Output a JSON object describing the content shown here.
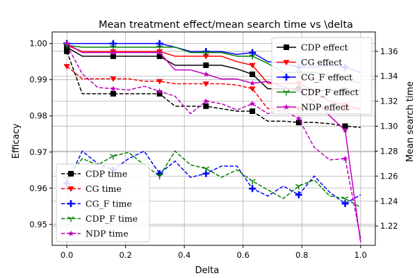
{
  "chart_data": {
    "type": "line",
    "title": "Mean treatment effect/mean search time vs \\delta",
    "xlabel": "Delta",
    "ylabel": "Efficacy",
    "y2label": "Mean search time",
    "xlim": [
      -0.05,
      1.05
    ],
    "ylim": [
      0.9442,
      1.0032
    ],
    "y2lim": [
      1.2045,
      1.3755
    ],
    "x_ticks": [
      0.0,
      0.2,
      0.4,
      0.6,
      0.8,
      1.0
    ],
    "x_tick_labels": [
      "0.0",
      "0.2",
      "0.4",
      "0.6",
      "0.8",
      "1.0"
    ],
    "y_ticks": [
      0.95,
      0.96,
      0.97,
      0.98,
      0.99,
      1.0
    ],
    "y_tick_labels": [
      "0.95",
      "0.96",
      "0.97",
      "0.98",
      "0.99",
      "1.00"
    ],
    "y2_ticks": [
      1.22,
      1.24,
      1.26,
      1.28,
      1.3,
      1.32,
      1.34,
      1.36
    ],
    "y2_tick_labels": [
      "1.22",
      "1.24",
      "1.26",
      "1.28",
      "1.30",
      "1.32",
      "1.34",
      "1.36"
    ],
    "grid": true,
    "x": [
      0.0,
      0.0526,
      0.1053,
      0.1579,
      0.2105,
      0.2632,
      0.3158,
      0.3684,
      0.4211,
      0.4737,
      0.5263,
      0.5789,
      0.6316,
      0.6842,
      0.7368,
      0.7895,
      0.8421,
      0.8947,
      0.9474,
      1.0
    ],
    "series": [
      {
        "name": "CDP effect",
        "axis": "left",
        "style": "solid",
        "color": "#000000",
        "marker": "square",
        "values": [
          0.999,
          0.9965,
          0.9965,
          0.9965,
          0.9965,
          0.9965,
          0.9965,
          0.994,
          0.994,
          0.994,
          0.994,
          0.993,
          0.9915,
          0.9875,
          0.9875,
          0.9875,
          0.987,
          0.987,
          0.987,
          0.987
        ]
      },
      {
        "name": "CG effect",
        "axis": "left",
        "style": "solid",
        "color": "#ff0000",
        "marker": "triangle-down",
        "values": [
          0.9995,
          0.9978,
          0.9978,
          0.9978,
          0.9978,
          0.9978,
          0.9978,
          0.9965,
          0.9965,
          0.9965,
          0.9965,
          0.995,
          0.994,
          0.989,
          0.989,
          0.989,
          0.987,
          0.984,
          0.983,
          0.9818
        ]
      },
      {
        "name": "CG_F effect",
        "axis": "left",
        "style": "solid",
        "color": "#0000ff",
        "marker": "plus",
        "values": [
          1.0,
          1.0,
          1.0,
          1.0,
          1.0,
          1.0,
          1.0,
          0.999,
          0.9978,
          0.9978,
          0.9978,
          0.997,
          0.9975,
          0.995,
          0.9945,
          0.9935,
          0.9935,
          0.994,
          0.9935,
          0.992
        ]
      },
      {
        "name": "CDP_F effect",
        "axis": "left",
        "style": "solid",
        "color": "#008000",
        "marker": "tri-down",
        "values": [
          0.9995,
          0.999,
          0.999,
          0.999,
          0.999,
          0.999,
          0.999,
          0.999,
          0.9975,
          0.9975,
          0.9975,
          0.9965,
          0.9965,
          0.9945,
          0.992,
          0.992,
          0.992,
          0.991,
          0.99,
          0.989
        ]
      },
      {
        "name": "NDP effect",
        "axis": "left",
        "style": "solid",
        "color": "#bf00bf",
        "marker": "star",
        "values": [
          1.0,
          0.9975,
          0.9975,
          0.9975,
          0.9975,
          0.9975,
          0.9975,
          0.9927,
          0.9927,
          0.9915,
          0.9902,
          0.9902,
          0.989,
          0.9895,
          0.988,
          0.987,
          0.984,
          0.98,
          0.976,
          0.945
        ]
      },
      {
        "name": "CDP time",
        "axis": "right",
        "style": "dashed",
        "color": "#000000",
        "marker": "square",
        "values": [
          1.36,
          1.326,
          1.326,
          1.326,
          1.326,
          1.326,
          1.326,
          1.316,
          1.316,
          1.316,
          1.314,
          1.312,
          1.312,
          1.304,
          1.304,
          1.303,
          1.303,
          1.302,
          1.3,
          1.299
        ]
      },
      {
        "name": "CG time",
        "axis": "right",
        "style": "dashed",
        "color": "#ff0000",
        "marker": "triangle-down",
        "values": [
          1.348,
          1.338,
          1.338,
          1.338,
          1.338,
          1.336,
          1.336,
          1.334,
          1.334,
          1.334,
          1.334,
          1.333,
          1.33,
          1.314,
          1.314,
          1.314,
          1.314,
          1.314,
          1.314,
          1.314
        ]
      },
      {
        "name": "CG_F time",
        "axis": "right",
        "style": "dashed",
        "color": "#0000ff",
        "marker": "plus",
        "values": [
          1.254,
          1.28,
          1.27,
          1.265,
          1.274,
          1.28,
          1.262,
          1.272,
          1.259,
          1.262,
          1.268,
          1.268,
          1.25,
          1.244,
          1.252,
          1.245,
          1.26,
          1.247,
          1.238,
          1.245
        ]
      },
      {
        "name": "CDP_F time",
        "axis": "right",
        "style": "dashed",
        "color": "#008000",
        "marker": "tri-down",
        "values": [
          1.258,
          1.274,
          1.269,
          1.276,
          1.279,
          1.269,
          1.26,
          1.28,
          1.269,
          1.266,
          1.259,
          1.265,
          1.256,
          1.249,
          1.242,
          1.252,
          1.257,
          1.244,
          1.242,
          1.235
        ]
      },
      {
        "name": "NDP time",
        "axis": "right",
        "style": "dashed",
        "color": "#bf00bf",
        "marker": "star",
        "values": [
          1.365,
          1.342,
          1.331,
          1.33,
          1.329,
          1.332,
          1.328,
          1.324,
          1.31,
          1.32,
          1.318,
          1.313,
          1.318,
          1.31,
          1.313,
          1.306,
          1.283,
          1.273,
          1.274,
          1.21
        ]
      }
    ],
    "legend_right": {
      "placement": "top-right",
      "entries": [
        "CDP effect",
        "CG effect",
        "CG_F effect",
        "CDP_F effect",
        "NDP effect"
      ]
    },
    "legend_left": {
      "placement": "lower-left",
      "entries": [
        "CDP time",
        "CG time",
        "CG_F time",
        "CDP_F time",
        "NDP time"
      ]
    }
  }
}
